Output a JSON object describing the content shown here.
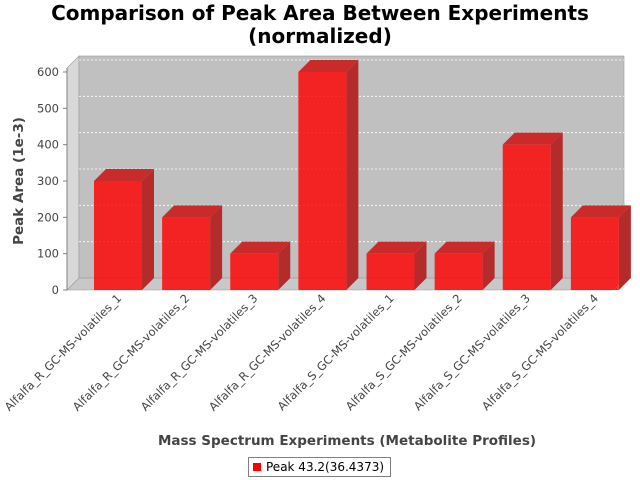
{
  "chart_data": {
    "type": "bar",
    "title_lines": [
      "Comparison of Peak Area Between Experiments",
      "(normalized)"
    ],
    "xlabel": "Mass Spectrum Experiments (Metabolite Profiles)",
    "ylabel": "Peak Area (1e-3)",
    "categories": [
      "Alfalfa_R_GC-MS-volatiles_1",
      "Alfalfa_R_GC-MS-volatiles_2",
      "Alfalfa_R_GC-MS-volatiles_3",
      "Alfalfa_R_GC-MS-volatiles_4",
      "Alfalfa_S_GC-MS-volatiles_1",
      "Alfalfa_S_GC-MS-volatiles_2",
      "Alfalfa_S_GC-MS-volatiles_3",
      "Alfalfa_S_GC-MS-volatiles_4"
    ],
    "series": [
      {
        "name": "Peak 43.2(36.4373)",
        "values": [
          300,
          200,
          100,
          600,
          100,
          100,
          400,
          200
        ]
      }
    ],
    "ylim": [
      0,
      600
    ],
    "yticks": [
      0,
      100,
      200,
      300,
      400,
      500,
      600
    ],
    "grid": true,
    "legend": "bottom",
    "style": "3d",
    "colors": {
      "bar": "#ff0000",
      "plot_background": "#c0c0c0"
    }
  }
}
